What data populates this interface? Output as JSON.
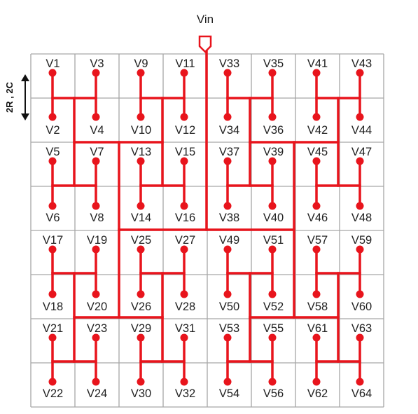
{
  "input_label": "Vin",
  "scale_label": "2R , 2C",
  "colors": {
    "trace": "#e8141c",
    "grid": "#a6a6a6",
    "text": "#222222",
    "bg": "#ffffff"
  },
  "grid": {
    "rows": 8,
    "cols": 8
  },
  "node_labels": [
    [
      "V1",
      "V3",
      "V9",
      "V11",
      "V33",
      "V35",
      "V41",
      "V43"
    ],
    [
      "V2",
      "V4",
      "V10",
      "V12",
      "V34",
      "V36",
      "V42",
      "V44"
    ],
    [
      "V5",
      "V7",
      "V13",
      "V15",
      "V37",
      "V39",
      "V45",
      "V47"
    ],
    [
      "V6",
      "V8",
      "V14",
      "V16",
      "V38",
      "V40",
      "V46",
      "V48"
    ],
    [
      "V17",
      "V19",
      "V25",
      "V27",
      "V49",
      "V51",
      "V57",
      "V59"
    ],
    [
      "V18",
      "V20",
      "V26",
      "V28",
      "V50",
      "V52",
      "V58",
      "V60"
    ],
    [
      "V21",
      "V23",
      "V29",
      "V31",
      "V53",
      "V55",
      "V61",
      "V63"
    ],
    [
      "V22",
      "V24",
      "V30",
      "V32",
      "V54",
      "V56",
      "V62",
      "V64"
    ]
  ]
}
